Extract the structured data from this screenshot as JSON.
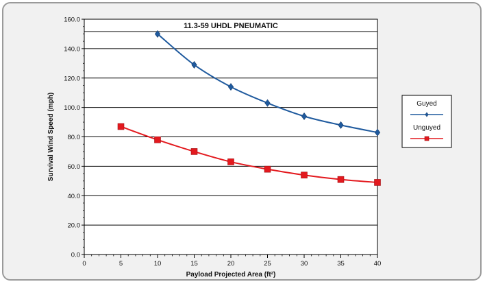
{
  "chart_data": {
    "type": "line",
    "title": "11.3-59 UHDL PNEUMATIC",
    "xlabel": "Payload Projected Area (ft²)",
    "ylabel": "Survival Wind Speed (mph)",
    "xlim": [
      0,
      40
    ],
    "ylim": [
      0,
      160
    ],
    "x_ticks": [
      0,
      5,
      10,
      15,
      20,
      25,
      30,
      35,
      40
    ],
    "y_ticks": [
      "0.0",
      "20.0",
      "40.0",
      "60.0",
      "80.0",
      "100.0",
      "120.0",
      "140.0",
      "160.0"
    ],
    "grid": "horizontal",
    "legend_position": "right",
    "series": [
      {
        "name": "Guyed",
        "color": "#1f5a9e",
        "marker": "diamond",
        "x": [
          10,
          15,
          20,
          25,
          30,
          35,
          40
        ],
        "y": [
          150,
          129,
          114,
          103,
          94,
          88,
          83
        ]
      },
      {
        "name": "Unguyed",
        "color": "#e3191e",
        "marker": "square",
        "x": [
          5,
          10,
          15,
          20,
          25,
          30,
          35,
          40
        ],
        "y": [
          87,
          78,
          70,
          63,
          58,
          54,
          51,
          49
        ]
      }
    ]
  }
}
